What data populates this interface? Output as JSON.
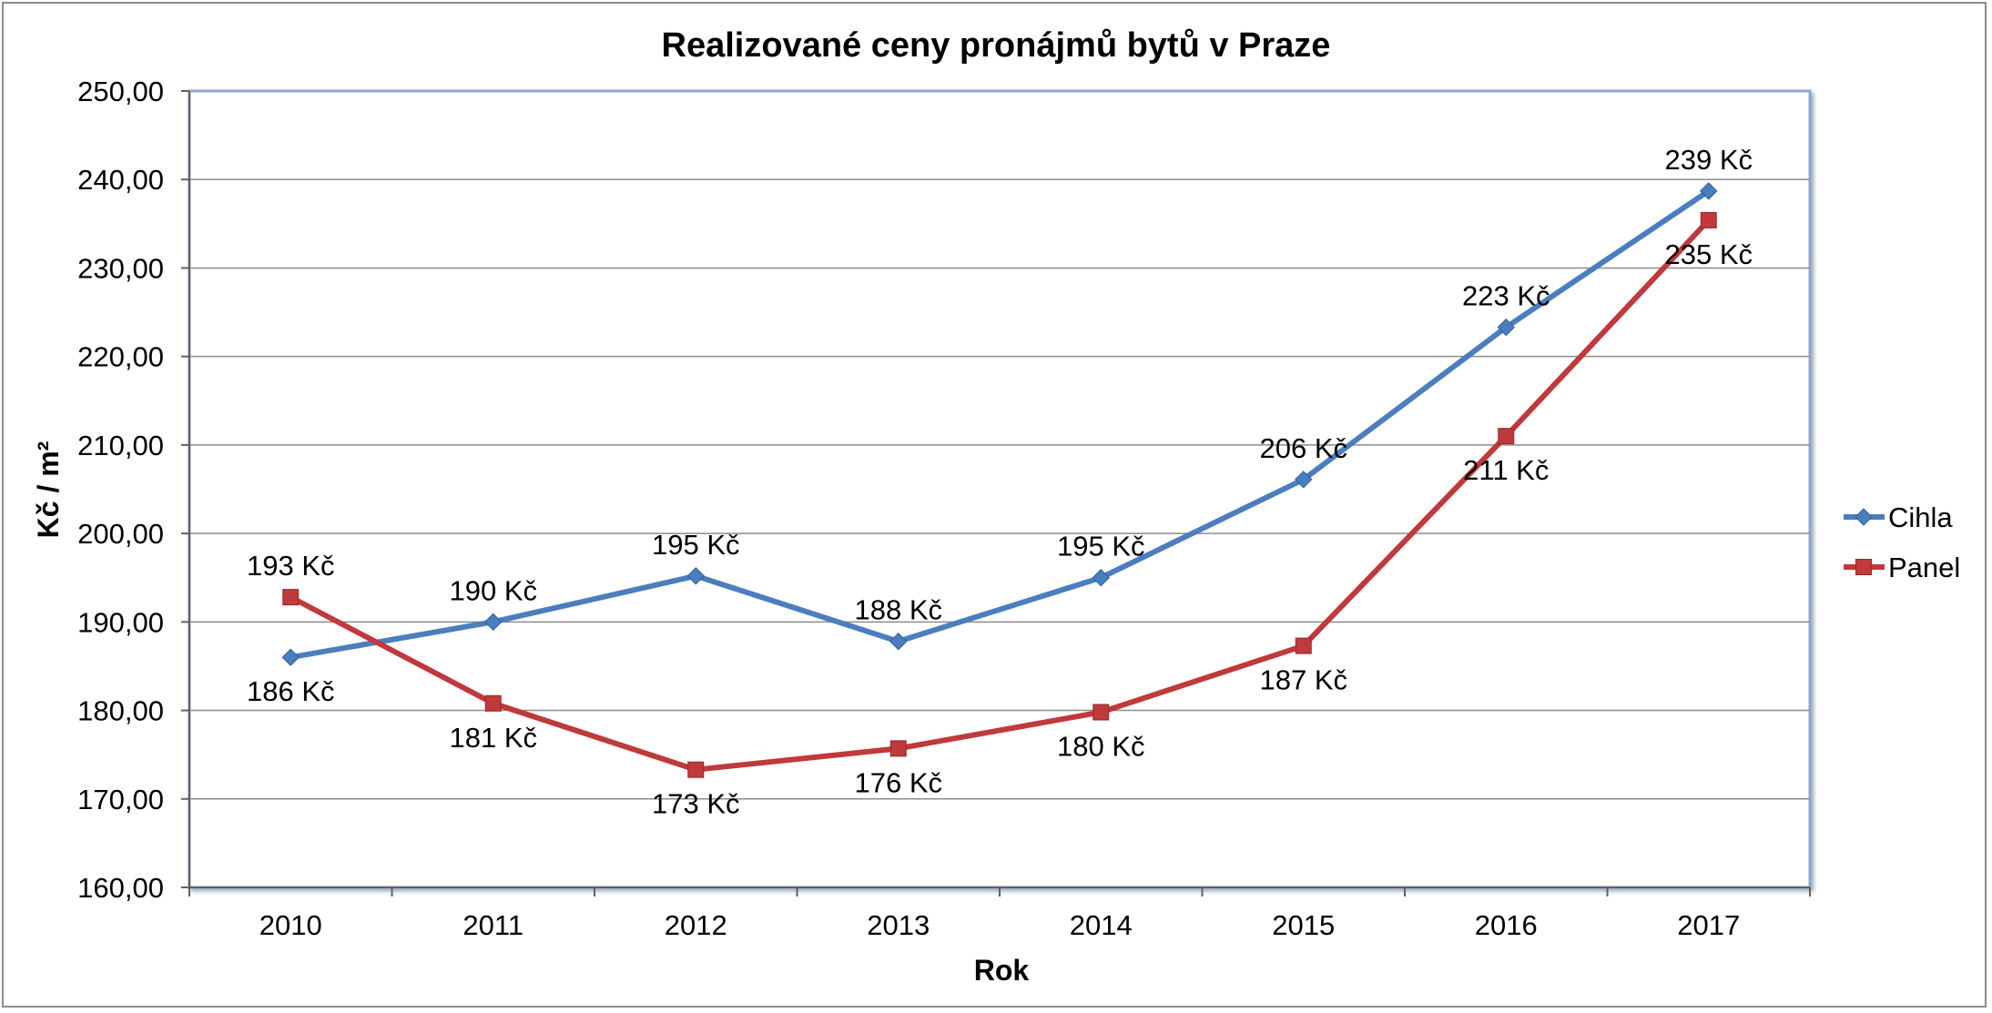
{
  "chart_data": {
    "type": "line",
    "title": "Realizované ceny pronájmů bytů v Praze",
    "xlabel": "Rok",
    "ylabel": "Kč / m²",
    "categories": [
      "2010",
      "2011",
      "2012",
      "2013",
      "2014",
      "2015",
      "2016",
      "2017"
    ],
    "ylim": [
      160,
      250
    ],
    "ytick_step": 10,
    "ytick_labels": [
      "160,00",
      "170,00",
      "180,00",
      "190,00",
      "200,00",
      "210,00",
      "220,00",
      "230,00",
      "240,00",
      "250,00"
    ],
    "grid": true,
    "legend_position": "right",
    "series": [
      {
        "name": "Cihla",
        "color": "#4a7ebf",
        "marker": "diamond",
        "values": [
          186.0,
          190.0,
          195.2,
          187.8,
          195.0,
          206.1,
          223.3,
          238.7
        ],
        "labels": [
          "186 Kč",
          "190 Kč",
          "195 Kč",
          "188 Kč",
          "195 Kč",
          "206 Kč",
          "223 Kč",
          "239 Kč"
        ],
        "label_side": [
          "below",
          "above",
          "above",
          "above",
          "above",
          "above",
          "above",
          "above"
        ]
      },
      {
        "name": "Panel",
        "color": "#c0393b",
        "marker": "square",
        "values": [
          192.8,
          180.8,
          173.3,
          175.7,
          179.8,
          187.3,
          211.0,
          235.4
        ],
        "labels": [
          "193 Kč",
          "181 Kč",
          "173 Kč",
          "176 Kč",
          "180 Kč",
          "187 Kč",
          "211 Kč",
          "235 Kč"
        ],
        "label_side": [
          "above",
          "below",
          "below",
          "below",
          "below",
          "below",
          "below",
          "below"
        ]
      }
    ]
  }
}
